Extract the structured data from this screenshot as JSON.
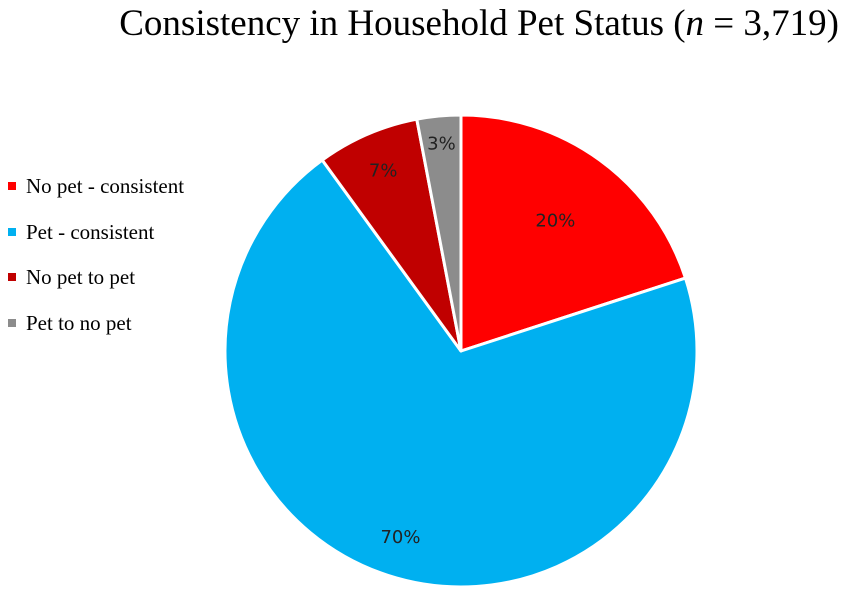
{
  "chart_data": {
    "type": "pie",
    "title": {
      "prefix": "Consistency in Household Pet Status (",
      "n_symbol": "n",
      "suffix": " = 3,719)"
    },
    "slices": [
      {
        "name": "No pet - consistent",
        "value": 20,
        "label": "20%",
        "color": "#FF0000"
      },
      {
        "name": "Pet - consistent",
        "value": 70,
        "label": "70%",
        "color": "#00B0F0"
      },
      {
        "name": "No pet to pet",
        "value": 7,
        "label": "7%",
        "color": "#C00000"
      },
      {
        "name": "Pet to no pet",
        "value": 3,
        "label": "3%",
        "color": "#8C8C8C"
      }
    ],
    "start_angle_deg": 0,
    "direction": "clockwise",
    "legend_position": "left"
  }
}
